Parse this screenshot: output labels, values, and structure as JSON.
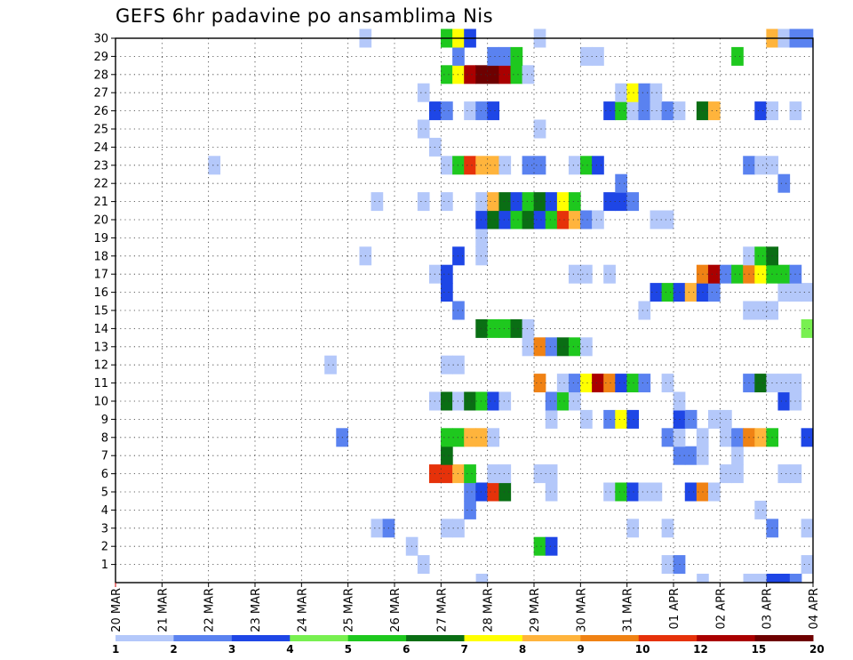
{
  "chart_data": {
    "type": "heatmap",
    "title": "GEFS 6hr padavine po ansamblima Nis",
    "y_members": [
      1,
      2,
      3,
      4,
      5,
      6,
      7,
      8,
      9,
      10,
      11,
      12,
      13,
      14,
      15,
      16,
      17,
      18,
      19,
      20,
      21,
      22,
      23,
      24,
      25,
      26,
      27,
      28,
      29,
      30
    ],
    "x_labels": [
      "20 MAR",
      "21 MAR",
      "22 MAR",
      "23 MAR",
      "24 MAR",
      "25 MAR",
      "26 MAR",
      "27 MAR",
      "28 MAR",
      "29 MAR",
      "30 MAR",
      "31 MAR",
      "01 APR",
      "02 APR",
      "03 APR",
      "04 APR"
    ],
    "x_step_count": 60,
    "legend_ticks": [
      "1",
      "2",
      "3",
      "4",
      "5",
      "6",
      "7",
      "8",
      "9",
      "10",
      "12",
      "15",
      "20"
    ],
    "legend_colors": [
      "#b4c8fa",
      "#5a82f0",
      "#1e46e6",
      "#78f050",
      "#1ec81e",
      "#0a6e14",
      "#ffff00",
      "#ffb43c",
      "#f08214",
      "#e6320a",
      "#aa0000",
      "#6e0000"
    ],
    "cells": [
      [
        1,
        26,
        0
      ],
      [
        1,
        47,
        0
      ],
      [
        1,
        48,
        1
      ],
      [
        1,
        59,
        0
      ],
      [
        2,
        25,
        0
      ],
      [
        2,
        36,
        4
      ],
      [
        2,
        37,
        2
      ],
      [
        3,
        22,
        0
      ],
      [
        3,
        23,
        1
      ],
      [
        3,
        28,
        0
      ],
      [
        3,
        29,
        0
      ],
      [
        3,
        44,
        0
      ],
      [
        3,
        47,
        0
      ],
      [
        3,
        56,
        1
      ],
      [
        3,
        59,
        0
      ],
      [
        4,
        30,
        1
      ],
      [
        4,
        55,
        0
      ],
      [
        5,
        30,
        1
      ],
      [
        5,
        31,
        2
      ],
      [
        5,
        32,
        9
      ],
      [
        5,
        33,
        5
      ],
      [
        5,
        37,
        0
      ],
      [
        5,
        42,
        0
      ],
      [
        5,
        43,
        4
      ],
      [
        5,
        44,
        2
      ],
      [
        5,
        45,
        0
      ],
      [
        5,
        46,
        0
      ],
      [
        5,
        49,
        2
      ],
      [
        5,
        50,
        8
      ],
      [
        5,
        51,
        0
      ],
      [
        6,
        27,
        9
      ],
      [
        6,
        28,
        9
      ],
      [
        6,
        29,
        7
      ],
      [
        6,
        30,
        4
      ],
      [
        6,
        32,
        0
      ],
      [
        6,
        33,
        0
      ],
      [
        6,
        36,
        0
      ],
      [
        6,
        37,
        0
      ],
      [
        6,
        52,
        0
      ],
      [
        6,
        53,
        0
      ],
      [
        6,
        57,
        0
      ],
      [
        6,
        58,
        0
      ],
      [
        7,
        28,
        5
      ],
      [
        7,
        48,
        1
      ],
      [
        7,
        49,
        1
      ],
      [
        7,
        50,
        0
      ],
      [
        7,
        53,
        0
      ],
      [
        8,
        19,
        1
      ],
      [
        8,
        28,
        4
      ],
      [
        8,
        29,
        4
      ],
      [
        8,
        30,
        7
      ],
      [
        8,
        31,
        7
      ],
      [
        8,
        32,
        0
      ],
      [
        8,
        47,
        1
      ],
      [
        8,
        48,
        0
      ],
      [
        8,
        50,
        0
      ],
      [
        8,
        52,
        0
      ],
      [
        8,
        53,
        1
      ],
      [
        8,
        54,
        8
      ],
      [
        8,
        55,
        7
      ],
      [
        8,
        56,
        4
      ],
      [
        8,
        59,
        2
      ],
      [
        9,
        37,
        0
      ],
      [
        9,
        40,
        0
      ],
      [
        9,
        42,
        1
      ],
      [
        9,
        43,
        6
      ],
      [
        9,
        44,
        2
      ],
      [
        9,
        48,
        2
      ],
      [
        9,
        49,
        1
      ],
      [
        9,
        51,
        0
      ],
      [
        9,
        52,
        0
      ],
      [
        10,
        27,
        0
      ],
      [
        10,
        28,
        5
      ],
      [
        10,
        29,
        0
      ],
      [
        10,
        30,
        5
      ],
      [
        10,
        31,
        4
      ],
      [
        10,
        32,
        2
      ],
      [
        10,
        33,
        0
      ],
      [
        10,
        37,
        1
      ],
      [
        10,
        38,
        4
      ],
      [
        10,
        39,
        0
      ],
      [
        10,
        48,
        0
      ],
      [
        10,
        57,
        2
      ],
      [
        10,
        58,
        0
      ],
      [
        11,
        36,
        8
      ],
      [
        11,
        38,
        0
      ],
      [
        11,
        39,
        1
      ],
      [
        11,
        40,
        6
      ],
      [
        11,
        41,
        10
      ],
      [
        11,
        42,
        8
      ],
      [
        11,
        43,
        2
      ],
      [
        11,
        44,
        4
      ],
      [
        11,
        45,
        1
      ],
      [
        11,
        47,
        0
      ],
      [
        11,
        54,
        1
      ],
      [
        11,
        55,
        5
      ],
      [
        11,
        56,
        0
      ],
      [
        11,
        57,
        0
      ],
      [
        11,
        58,
        0
      ],
      [
        12,
        18,
        0
      ],
      [
        12,
        28,
        0
      ],
      [
        12,
        29,
        0
      ],
      [
        13,
        35,
        0
      ],
      [
        13,
        36,
        8
      ],
      [
        13,
        37,
        1
      ],
      [
        13,
        38,
        5
      ],
      [
        13,
        39,
        4
      ],
      [
        13,
        40,
        0
      ],
      [
        14,
        31,
        5
      ],
      [
        14,
        32,
        4
      ],
      [
        14,
        33,
        4
      ],
      [
        14,
        34,
        5
      ],
      [
        14,
        35,
        0
      ],
      [
        14,
        59,
        3
      ],
      [
        15,
        29,
        1
      ],
      [
        15,
        45,
        0
      ],
      [
        15,
        54,
        0
      ],
      [
        15,
        55,
        0
      ],
      [
        15,
        56,
        0
      ],
      [
        16,
        28,
        2
      ],
      [
        16,
        46,
        2
      ],
      [
        16,
        47,
        4
      ],
      [
        16,
        48,
        2
      ],
      [
        16,
        49,
        7
      ],
      [
        16,
        50,
        2
      ],
      [
        16,
        51,
        1
      ],
      [
        16,
        57,
        0
      ],
      [
        16,
        58,
        0
      ],
      [
        16,
        59,
        0
      ],
      [
        17,
        27,
        0
      ],
      [
        17,
        28,
        2
      ],
      [
        17,
        39,
        0
      ],
      [
        17,
        40,
        0
      ],
      [
        17,
        42,
        0
      ],
      [
        17,
        50,
        8
      ],
      [
        17,
        51,
        10
      ],
      [
        17,
        52,
        1
      ],
      [
        17,
        53,
        4
      ],
      [
        17,
        54,
        8
      ],
      [
        17,
        55,
        6
      ],
      [
        17,
        56,
        4
      ],
      [
        17,
        57,
        4
      ],
      [
        17,
        58,
        1
      ],
      [
        18,
        21,
        0
      ],
      [
        18,
        29,
        2
      ],
      [
        18,
        31,
        0
      ],
      [
        18,
        54,
        0
      ],
      [
        18,
        55,
        4
      ],
      [
        18,
        56,
        5
      ],
      [
        19,
        31,
        0
      ],
      [
        20,
        31,
        2
      ],
      [
        20,
        32,
        5
      ],
      [
        20,
        33,
        2
      ],
      [
        20,
        34,
        4
      ],
      [
        20,
        35,
        5
      ],
      [
        20,
        36,
        2
      ],
      [
        20,
        37,
        4
      ],
      [
        20,
        38,
        9
      ],
      [
        20,
        39,
        7
      ],
      [
        20,
        40,
        1
      ],
      [
        20,
        41,
        0
      ],
      [
        20,
        46,
        0
      ],
      [
        20,
        47,
        0
      ],
      [
        21,
        22,
        0
      ],
      [
        21,
        26,
        0
      ],
      [
        21,
        28,
        0
      ],
      [
        21,
        31,
        0
      ],
      [
        21,
        32,
        7
      ],
      [
        21,
        33,
        5
      ],
      [
        21,
        34,
        2
      ],
      [
        21,
        35,
        4
      ],
      [
        21,
        36,
        5
      ],
      [
        21,
        37,
        2
      ],
      [
        21,
        38,
        6
      ],
      [
        21,
        39,
        4
      ],
      [
        21,
        42,
        2
      ],
      [
        21,
        43,
        2
      ],
      [
        21,
        44,
        1
      ],
      [
        22,
        43,
        1
      ],
      [
        22,
        57,
        1
      ],
      [
        23,
        8,
        0
      ],
      [
        23,
        28,
        0
      ],
      [
        23,
        29,
        4
      ],
      [
        23,
        30,
        9
      ],
      [
        23,
        31,
        7
      ],
      [
        23,
        32,
        7
      ],
      [
        23,
        33,
        0
      ],
      [
        23,
        35,
        1
      ],
      [
        23,
        36,
        1
      ],
      [
        23,
        39,
        0
      ],
      [
        23,
        40,
        4
      ],
      [
        23,
        41,
        2
      ],
      [
        23,
        54,
        1
      ],
      [
        23,
        55,
        0
      ],
      [
        23,
        56,
        0
      ],
      [
        24,
        27,
        0
      ],
      [
        25,
        26,
        0
      ],
      [
        25,
        36,
        0
      ],
      [
        26,
        27,
        2
      ],
      [
        26,
        28,
        1
      ],
      [
        26,
        30,
        0
      ],
      [
        26,
        31,
        1
      ],
      [
        26,
        32,
        2
      ],
      [
        26,
        42,
        2
      ],
      [
        26,
        43,
        4
      ],
      [
        26,
        44,
        0
      ],
      [
        26,
        45,
        1
      ],
      [
        26,
        46,
        0
      ],
      [
        26,
        47,
        1
      ],
      [
        26,
        48,
        0
      ],
      [
        26,
        50,
        5
      ],
      [
        26,
        51,
        7
      ],
      [
        26,
        55,
        2
      ],
      [
        26,
        56,
        0
      ],
      [
        26,
        58,
        0
      ],
      [
        27,
        26,
        0
      ],
      [
        27,
        43,
        0
      ],
      [
        27,
        44,
        6
      ],
      [
        27,
        45,
        1
      ],
      [
        27,
        46,
        0
      ],
      [
        28,
        28,
        4
      ],
      [
        28,
        29,
        6
      ],
      [
        28,
        30,
        10
      ],
      [
        28,
        31,
        11
      ],
      [
        28,
        32,
        11
      ],
      [
        28,
        33,
        10
      ],
      [
        28,
        34,
        4
      ],
      [
        28,
        35,
        0
      ],
      [
        29,
        29,
        1
      ],
      [
        29,
        32,
        1
      ],
      [
        29,
        33,
        1
      ],
      [
        29,
        34,
        4
      ],
      [
        29,
        40,
        0
      ],
      [
        29,
        41,
        0
      ],
      [
        29,
        53,
        4
      ],
      [
        30,
        21,
        0
      ],
      [
        30,
        28,
        4
      ],
      [
        30,
        29,
        6
      ],
      [
        30,
        30,
        2
      ],
      [
        30,
        36,
        0
      ],
      [
        30,
        56,
        7
      ],
      [
        30,
        57,
        0
      ],
      [
        30,
        58,
        1
      ],
      [
        30,
        59,
        1
      ]
    ],
    "bottom_row_cells": [
      [
        31,
        0
      ],
      [
        50,
        0
      ],
      [
        54,
        0
      ],
      [
        55,
        0
      ],
      [
        56,
        2
      ],
      [
        57,
        2
      ],
      [
        58,
        1
      ]
    ]
  }
}
